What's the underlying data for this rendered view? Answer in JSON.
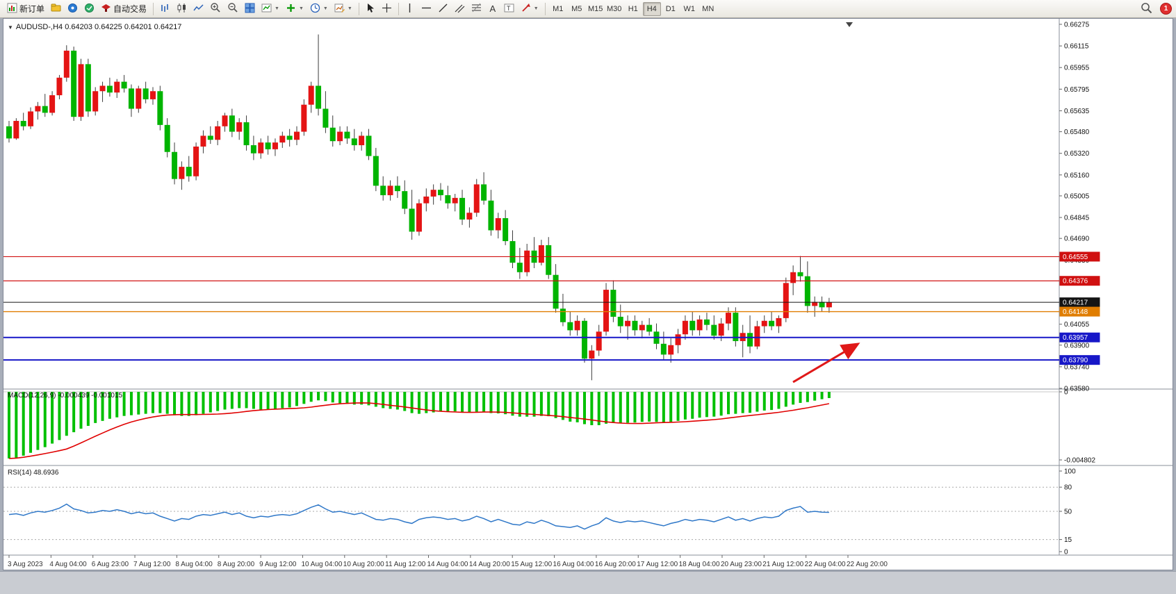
{
  "toolbar": {
    "new_order": "新订单",
    "auto_trading": "自动交易",
    "timeframes": [
      "M1",
      "M5",
      "M15",
      "M30",
      "H1",
      "H4",
      "D1",
      "W1",
      "MN"
    ],
    "active_timeframe": "H4",
    "notification_count": "1"
  },
  "chart": {
    "title": "AUDUSD-,H4 0.64203 0.64225 0.64201 0.64217",
    "symbol": "AUDUSD-",
    "timeframe": "H4",
    "price_ticks": [
      "0.66275",
      "0.66115",
      "0.65955",
      "0.65795",
      "0.65635",
      "0.65480",
      "0.65320",
      "0.65160",
      "0.65005",
      "0.64845",
      "0.64690",
      "0.64530",
      "0.64055",
      "0.63900",
      "0.63740",
      "0.63580"
    ],
    "levels": [
      {
        "price": 0.64555,
        "label": "0.64555",
        "color": "#d01010",
        "width": 1.2
      },
      {
        "price": 0.64376,
        "label": "0.64376",
        "color": "#d01010",
        "width": 1.2
      },
      {
        "price": 0.64217,
        "label": "0.64217",
        "color": "#141414",
        "width": 1.0
      },
      {
        "price": 0.64148,
        "label": "0.64148",
        "color": "#e07d00",
        "width": 1.4
      },
      {
        "price": 0.63957,
        "label": "0.63957",
        "color": "#1717c8",
        "width": 2.0
      },
      {
        "price": 0.6379,
        "label": "0.63790",
        "color": "#1717c8",
        "width": 2.0
      }
    ],
    "time_labels": [
      "3 Aug 2023",
      "4 Aug 04:00",
      "6 Aug 23:00",
      "7 Aug 12:00",
      "8 Aug 04:00",
      "8 Aug 20:00",
      "9 Aug 12:00",
      "10 Aug 04:00",
      "10 Aug 20:00",
      "11 Aug 12:00",
      "14 Aug 04:00",
      "14 Aug 20:00",
      "15 Aug 12:00",
      "16 Aug 04:00",
      "16 Aug 20:00",
      "17 Aug 12:00",
      "18 Aug 04:00",
      "20 Aug 23:00",
      "21 Aug 12:00",
      "22 Aug 04:00",
      "22 Aug 20:00"
    ],
    "annotations": [
      {
        "type": "arrow",
        "color": "#e01818"
      }
    ],
    "colors": {
      "bull": "#e41414",
      "bear": "#00b400",
      "wick": "#3c3c3c",
      "background": "#ffffff",
      "macd_histogram": "#00c000",
      "macd_signal": "#e00000",
      "rsi_line": "#2e77c8"
    }
  },
  "macd": {
    "label": "MACD(12,26,9) -0.000439 -0.001015",
    "axis_top": "0",
    "axis_bottom": "-0.004802"
  },
  "rsi": {
    "label": "RSI(14) 48.6936",
    "axis_labels": [
      {
        "value": 100,
        "label": "100"
      },
      {
        "value": 80,
        "label": "80"
      },
      {
        "value": 50,
        "label": "50"
      },
      {
        "value": 15,
        "label": "15"
      },
      {
        "value": 0,
        "label": "0"
      }
    ],
    "dashed_levels": [
      80,
      50,
      15
    ]
  },
  "chart_data": {
    "type": "candlestick",
    "symbol": "AUDUSD",
    "period": "H4",
    "ohlc_display": {
      "open": "0.64203",
      "high": "0.64225",
      "low": "0.64201",
      "close": "0.64217"
    },
    "y_range": [
      0.6358,
      0.66275
    ],
    "macd_range": [
      -0.004802,
      0
    ],
    "rsi_range": [
      0,
      100
    ],
    "candles": [
      [
        0.6552,
        0.6556,
        0.654,
        0.6543
      ],
      [
        0.6543,
        0.6558,
        0.6542,
        0.6556
      ],
      [
        0.6556,
        0.6562,
        0.6549,
        0.6552
      ],
      [
        0.6552,
        0.6566,
        0.655,
        0.6563
      ],
      [
        0.6563,
        0.657,
        0.6557,
        0.6567
      ],
      [
        0.6567,
        0.6576,
        0.6559,
        0.6562
      ],
      [
        0.6562,
        0.6578,
        0.656,
        0.6575
      ],
      [
        0.6575,
        0.659,
        0.6572,
        0.6588
      ],
      [
        0.6588,
        0.6612,
        0.6585,
        0.6608
      ],
      [
        0.6608,
        0.6611,
        0.6556,
        0.6559
      ],
      [
        0.6559,
        0.6602,
        0.6556,
        0.6598
      ],
      [
        0.6598,
        0.6602,
        0.6559,
        0.6563
      ],
      [
        0.6563,
        0.6581,
        0.656,
        0.6578
      ],
      [
        0.6578,
        0.6585,
        0.657,
        0.6582
      ],
      [
        0.6582,
        0.6588,
        0.6574,
        0.6577
      ],
      [
        0.6577,
        0.6587,
        0.6573,
        0.6585
      ],
      [
        0.6585,
        0.659,
        0.6577,
        0.658
      ],
      [
        0.658,
        0.6583,
        0.6559,
        0.6565
      ],
      [
        0.6565,
        0.6582,
        0.6562,
        0.658
      ],
      [
        0.658,
        0.6585,
        0.6569,
        0.6572
      ],
      [
        0.6572,
        0.6581,
        0.6568,
        0.6578
      ],
      [
        0.6578,
        0.6582,
        0.6549,
        0.6553
      ],
      [
        0.6553,
        0.6558,
        0.6529,
        0.6533
      ],
      [
        0.6533,
        0.654,
        0.6509,
        0.6513
      ],
      [
        0.6513,
        0.6526,
        0.6505,
        0.6522
      ],
      [
        0.6522,
        0.653,
        0.6511,
        0.6515
      ],
      [
        0.6515,
        0.654,
        0.6512,
        0.6537
      ],
      [
        0.6537,
        0.6549,
        0.6532,
        0.6545
      ],
      [
        0.6545,
        0.6552,
        0.6539,
        0.6542
      ],
      [
        0.6542,
        0.6556,
        0.6538,
        0.6552
      ],
      [
        0.6552,
        0.6562,
        0.6548,
        0.656
      ],
      [
        0.656,
        0.6565,
        0.6544,
        0.6548
      ],
      [
        0.6548,
        0.6558,
        0.6542,
        0.6555
      ],
      [
        0.6555,
        0.656,
        0.6534,
        0.6538
      ],
      [
        0.6538,
        0.6545,
        0.6527,
        0.6532
      ],
      [
        0.6532,
        0.6543,
        0.6528,
        0.654
      ],
      [
        0.654,
        0.6545,
        0.6531,
        0.6535
      ],
      [
        0.6535,
        0.6543,
        0.653,
        0.654
      ],
      [
        0.654,
        0.6548,
        0.6536,
        0.6545
      ],
      [
        0.6545,
        0.655,
        0.6537,
        0.6542
      ],
      [
        0.6542,
        0.6552,
        0.6538,
        0.6548
      ],
      [
        0.6548,
        0.6572,
        0.6545,
        0.6568
      ],
      [
        0.6568,
        0.6585,
        0.6562,
        0.6582
      ],
      [
        0.6582,
        0.662,
        0.656,
        0.6565
      ],
      [
        0.6565,
        0.6578,
        0.6547,
        0.6551
      ],
      [
        0.6551,
        0.656,
        0.6537,
        0.6541
      ],
      [
        0.6541,
        0.6552,
        0.6538,
        0.6548
      ],
      [
        0.6548,
        0.6552,
        0.6539,
        0.6543
      ],
      [
        0.6543,
        0.655,
        0.6534,
        0.6538
      ],
      [
        0.6538,
        0.6548,
        0.6534,
        0.6545
      ],
      [
        0.6545,
        0.655,
        0.6527,
        0.653
      ],
      [
        0.653,
        0.6536,
        0.6504,
        0.6508
      ],
      [
        0.6508,
        0.6515,
        0.6497,
        0.6501
      ],
      [
        0.6501,
        0.6512,
        0.6497,
        0.6508
      ],
      [
        0.6508,
        0.6515,
        0.6499,
        0.6504
      ],
      [
        0.6504,
        0.6512,
        0.6487,
        0.6491
      ],
      [
        0.6491,
        0.6505,
        0.6468,
        0.6474
      ],
      [
        0.6474,
        0.6498,
        0.6471,
        0.6495
      ],
      [
        0.6495,
        0.6506,
        0.6489,
        0.65
      ],
      [
        0.65,
        0.6509,
        0.6494,
        0.6505
      ],
      [
        0.6505,
        0.651,
        0.6497,
        0.6501
      ],
      [
        0.6501,
        0.6508,
        0.6491,
        0.6495
      ],
      [
        0.6495,
        0.6502,
        0.6489,
        0.6499
      ],
      [
        0.6499,
        0.6505,
        0.6479,
        0.6483
      ],
      [
        0.6483,
        0.6492,
        0.6477,
        0.6488
      ],
      [
        0.6488,
        0.6513,
        0.6485,
        0.6509
      ],
      [
        0.6509,
        0.6518,
        0.6494,
        0.6497
      ],
      [
        0.6497,
        0.6505,
        0.6471,
        0.6475
      ],
      [
        0.6475,
        0.6488,
        0.6469,
        0.6484
      ],
      [
        0.6484,
        0.649,
        0.6464,
        0.6467
      ],
      [
        0.6467,
        0.6475,
        0.6447,
        0.6451
      ],
      [
        0.6451,
        0.6462,
        0.6439,
        0.6444
      ],
      [
        0.6444,
        0.6465,
        0.6441,
        0.646
      ],
      [
        0.646,
        0.647,
        0.6447,
        0.6451
      ],
      [
        0.6451,
        0.6468,
        0.6449,
        0.6464
      ],
      [
        0.6464,
        0.647,
        0.6439,
        0.6442
      ],
      [
        0.6442,
        0.645,
        0.6414,
        0.6417
      ],
      [
        0.6417,
        0.6428,
        0.6404,
        0.6407
      ],
      [
        0.6407,
        0.6415,
        0.6397,
        0.6401
      ],
      [
        0.6401,
        0.6412,
        0.6397,
        0.6408
      ],
      [
        0.6408,
        0.641,
        0.6377,
        0.638
      ],
      [
        0.638,
        0.639,
        0.6364,
        0.6386
      ],
      [
        0.6386,
        0.6405,
        0.6382,
        0.64
      ],
      [
        0.64,
        0.6436,
        0.6397,
        0.6431
      ],
      [
        0.6431,
        0.6438,
        0.6407,
        0.6411
      ],
      [
        0.6411,
        0.642,
        0.6399,
        0.6404
      ],
      [
        0.6404,
        0.6412,
        0.6394,
        0.6408
      ],
      [
        0.6408,
        0.6412,
        0.6397,
        0.6401
      ],
      [
        0.6401,
        0.6408,
        0.6395,
        0.6405
      ],
      [
        0.6405,
        0.641,
        0.6397,
        0.64
      ],
      [
        0.64,
        0.6406,
        0.6387,
        0.6391
      ],
      [
        0.6391,
        0.64,
        0.6379,
        0.6383
      ],
      [
        0.6383,
        0.6395,
        0.6377,
        0.639
      ],
      [
        0.639,
        0.6402,
        0.6384,
        0.6398
      ],
      [
        0.6398,
        0.6412,
        0.6394,
        0.6408
      ],
      [
        0.6408,
        0.6415,
        0.6397,
        0.6401
      ],
      [
        0.6401,
        0.6412,
        0.6397,
        0.6409
      ],
      [
        0.6409,
        0.6414,
        0.6401,
        0.6405
      ],
      [
        0.6405,
        0.6412,
        0.6394,
        0.6397
      ],
      [
        0.6397,
        0.641,
        0.6393,
        0.6406
      ],
      [
        0.6406,
        0.6418,
        0.6401,
        0.6414
      ],
      [
        0.6414,
        0.6418,
        0.6389,
        0.6393
      ],
      [
        0.6393,
        0.6405,
        0.6381,
        0.6399
      ],
      [
        0.6399,
        0.6412,
        0.6384,
        0.6389
      ],
      [
        0.6389,
        0.6408,
        0.6387,
        0.6404
      ],
      [
        0.6404,
        0.6412,
        0.6399,
        0.6408
      ],
      [
        0.6408,
        0.6415,
        0.6401,
        0.6404
      ],
      [
        0.6404,
        0.6412,
        0.6399,
        0.641
      ],
      [
        0.641,
        0.644,
        0.6407,
        0.6436
      ],
      [
        0.6436,
        0.6449,
        0.6427,
        0.6444
      ],
      [
        0.6444,
        0.6456,
        0.6437,
        0.6441
      ],
      [
        0.6441,
        0.6452,
        0.6414,
        0.6419
      ],
      [
        0.6419,
        0.6426,
        0.6411,
        0.6422
      ],
      [
        0.6422,
        0.6426,
        0.6415,
        0.6418
      ],
      [
        0.6418,
        0.6425,
        0.6414,
        0.64217
      ]
    ],
    "macd_histogram": [
      -0.0047,
      -0.00465,
      -0.0045,
      -0.0043,
      -0.0041,
      -0.0039,
      -0.00365,
      -0.0034,
      -0.0031,
      -0.00285,
      -0.0026,
      -0.0024,
      -0.0022,
      -0.00205,
      -0.0019,
      -0.0018,
      -0.0017,
      -0.00165,
      -0.0016,
      -0.00155,
      -0.0015,
      -0.0015,
      -0.00155,
      -0.00165,
      -0.0017,
      -0.0017,
      -0.00165,
      -0.00155,
      -0.00145,
      -0.00135,
      -0.00125,
      -0.0012,
      -0.00115,
      -0.00115,
      -0.0012,
      -0.00125,
      -0.00125,
      -0.0012,
      -0.00115,
      -0.0011,
      -0.001,
      -0.00085,
      -0.0007,
      -0.0006,
      -0.00065,
      -0.00075,
      -0.0008,
      -0.00085,
      -0.0009,
      -0.0009,
      -0.00095,
      -0.00105,
      -0.00115,
      -0.0012,
      -0.00125,
      -0.00135,
      -0.0015,
      -0.00155,
      -0.0015,
      -0.00145,
      -0.0014,
      -0.0014,
      -0.00138,
      -0.00142,
      -0.00145,
      -0.0014,
      -0.00142,
      -0.0015,
      -0.00152,
      -0.00158,
      -0.00168,
      -0.00175,
      -0.00175,
      -0.00175,
      -0.0017,
      -0.00172,
      -0.00185,
      -0.00198,
      -0.0021,
      -0.00215,
      -0.00228,
      -0.00235,
      -0.00235,
      -0.00225,
      -0.0022,
      -0.0022,
      -0.00218,
      -0.00216,
      -0.00212,
      -0.0021,
      -0.00212,
      -0.00215,
      -0.00212,
      -0.00205,
      -0.00195,
      -0.0019,
      -0.00182,
      -0.00178,
      -0.00175,
      -0.00168,
      -0.00158,
      -0.00155,
      -0.0015,
      -0.00148,
      -0.0014,
      -0.00132,
      -0.00128,
      -0.0012,
      -0.00105,
      -0.0009,
      -0.00078,
      -0.00072,
      -0.00062,
      -0.00052,
      -0.000439
    ],
    "rsi_values": [
      46,
      47,
      45,
      48,
      50,
      49,
      51,
      54,
      59,
      53,
      51,
      48,
      49,
      51,
      50,
      52,
      50,
      47,
      49,
      47,
      48,
      44,
      41,
      38,
      41,
      40,
      44,
      46,
      45,
      47,
      49,
      46,
      48,
      44,
      42,
      44,
      43,
      45,
      46,
      45,
      47,
      51,
      55,
      58,
      53,
      49,
      50,
      48,
      46,
      48,
      44,
      40,
      39,
      41,
      40,
      37,
      35,
      40,
      42,
      43,
      42,
      40,
      41,
      38,
      40,
      44,
      41,
      37,
      40,
      37,
      34,
      33,
      37,
      35,
      39,
      36,
      32,
      31,
      30,
      32,
      28,
      32,
      35,
      42,
      38,
      36,
      38,
      37,
      38,
      36,
      34,
      32,
      35,
      37,
      40,
      38,
      40,
      39,
      37,
      40,
      43,
      39,
      41,
      38,
      41,
      43,
      42,
      44,
      51,
      54,
      56,
      49,
      50,
      49,
      48.69
    ]
  }
}
